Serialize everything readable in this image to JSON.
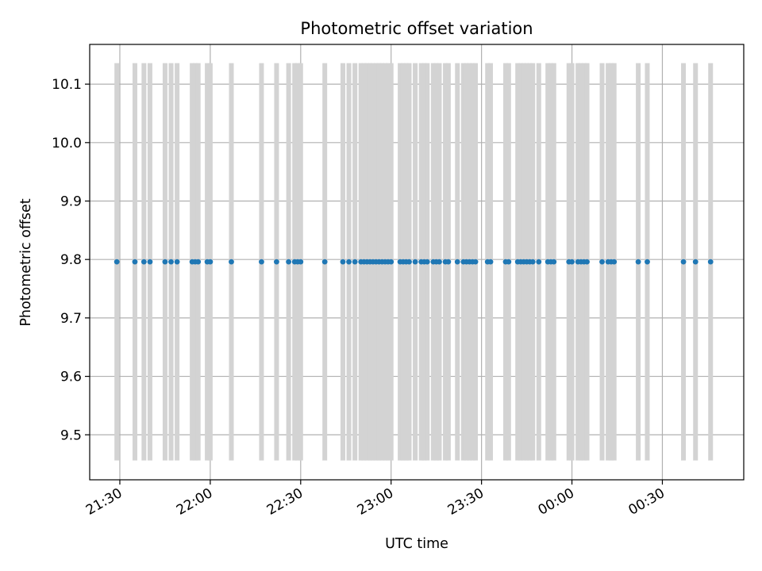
{
  "chart_data": {
    "type": "scatter",
    "title": "Photometric offset variation",
    "xlabel": "UTC time",
    "ylabel": "Photometric offset",
    "x_axis_kind": "time",
    "xlim": [
      "21:20",
      "00:57"
    ],
    "ylim": [
      9.423,
      10.168
    ],
    "x_ticks": [
      "21:30",
      "22:00",
      "22:30",
      "23:00",
      "23:30",
      "00:00",
      "00:30"
    ],
    "y_ticks": [
      9.5,
      9.6,
      9.7,
      9.8,
      9.9,
      10.0,
      10.1
    ],
    "grid": true,
    "legend": "none",
    "marker_color": "#1f77b4",
    "errorbar_color": "#d3d3d3",
    "y_value": 9.796,
    "y_error": 0.34,
    "x": [
      "21:29",
      "21:35",
      "21:38",
      "21:40",
      "21:45",
      "21:47",
      "21:49",
      "21:54",
      "21:55",
      "21:56",
      "21:59",
      "22:00",
      "22:07",
      "22:17",
      "22:22",
      "22:26",
      "22:28",
      "22:29",
      "22:30",
      "22:38",
      "22:44",
      "22:46",
      "22:48",
      "22:50",
      "22:51",
      "22:52",
      "22:53",
      "22:54",
      "22:55",
      "22:56",
      "22:57",
      "22:58",
      "22:59",
      "23:00",
      "23:03",
      "23:04",
      "23:05",
      "23:06",
      "23:08",
      "23:10",
      "23:11",
      "23:12",
      "23:14",
      "23:15",
      "23:16",
      "23:18",
      "23:19",
      "23:22",
      "23:24",
      "23:25",
      "23:26",
      "23:27",
      "23:28",
      "23:32",
      "23:33",
      "23:38",
      "23:39",
      "23:42",
      "23:43",
      "23:44",
      "23:45",
      "23:46",
      "23:47",
      "23:49",
      "23:52",
      "23:53",
      "23:54",
      "23:59",
      "24:00",
      "24:02",
      "24:03",
      "24:04",
      "24:05",
      "24:10",
      "24:12",
      "24:13",
      "24:14",
      "24:22",
      "24:25",
      "24:37",
      "24:41",
      "24:46"
    ]
  }
}
